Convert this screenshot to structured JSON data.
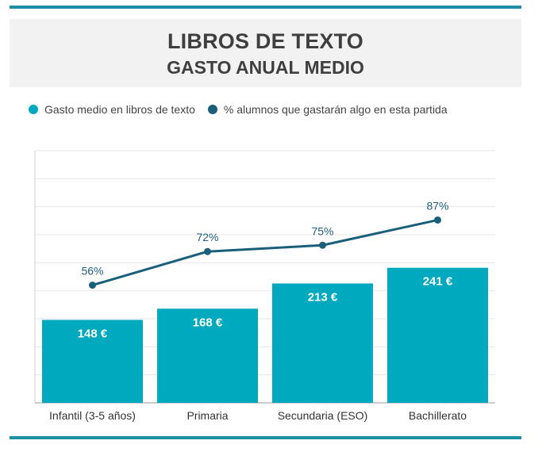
{
  "chart_data": {
    "type": "bar",
    "title": "LIBROS DE TEXTO",
    "subtitle": "GASTO ANUAL MEDIO",
    "categories": [
      "Infantil (3-5 años)",
      "Primaria",
      "Secundaria (ESO)",
      "Bachillerato"
    ],
    "series": [
      {
        "name": "Gasto medio en libros de texto",
        "type": "bar",
        "values": [
          148,
          168,
          213,
          241
        ],
        "labels": [
          "148 €",
          "168 €",
          "213 €",
          "241 €"
        ],
        "color": "#00a9bd"
      },
      {
        "name": "% alumnos que gastarán algo en esta partida",
        "type": "line",
        "values": [
          56,
          72,
          75,
          87
        ],
        "labels": [
          "56%",
          "72%",
          "75%",
          "87%"
        ],
        "color": "#1a5f7a"
      }
    ],
    "ylim": [
      0,
      450
    ],
    "y2lim": [
      0,
      120
    ],
    "grid": true,
    "legend": "top"
  }
}
